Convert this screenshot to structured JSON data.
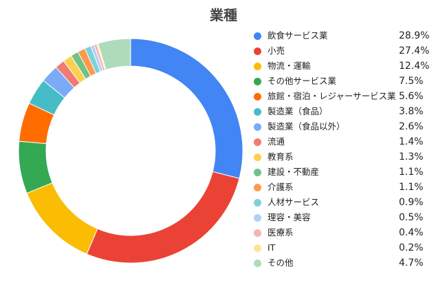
{
  "chart_data": {
    "type": "pie",
    "title": "業種",
    "legend_placement": "right",
    "categories": [
      "飲食サービス業",
      "小売",
      "物流・運輸",
      "その他サービス業",
      "旅館・宿泊・レジャーサービス業",
      "製造業（食品）",
      "製造業（食品以外）",
      "流通",
      "教育系",
      "建設・不動産",
      "介護系",
      "人材サービス",
      "理容・美容",
      "医療系",
      "IT",
      "その他"
    ],
    "values": [
      28.9,
      27.4,
      12.4,
      7.5,
      5.6,
      3.8,
      2.6,
      1.4,
      1.3,
      1.1,
      1.1,
      0.9,
      0.5,
      0.4,
      0.2,
      4.7
    ],
    "value_labels": [
      "28.9%",
      "27.4%",
      "12.4%",
      "7.5%",
      "5.6%",
      "3.8%",
      "2.6%",
      "1.4%",
      "1.3%",
      "1.1%",
      "1.1%",
      "0.9%",
      "0.5%",
      "0.4%",
      "0.2%",
      "4.7%"
    ],
    "colors": [
      "#4285F4",
      "#EA4335",
      "#FBBC04",
      "#34A853",
      "#FF6D01",
      "#46BDC6",
      "#7BAAF7",
      "#F07B72",
      "#FCD04F",
      "#71C287",
      "#FF994D",
      "#7ED1D7",
      "#B3CEFB",
      "#F7B4AE",
      "#FDE49B",
      "#AEDCBA"
    ]
  }
}
